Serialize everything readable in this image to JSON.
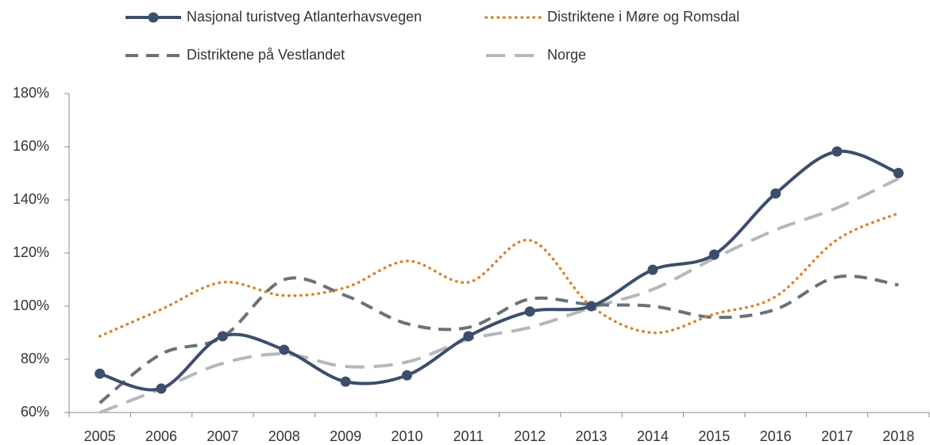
{
  "chart_data": {
    "type": "line",
    "smooth": true,
    "legend": "top",
    "categories": [
      "2005",
      "2006",
      "2007",
      "2008",
      "2009",
      "2010",
      "2011",
      "2012",
      "2013",
      "2014",
      "2015",
      "2016",
      "2017",
      "2018"
    ],
    "series": [
      {
        "name": "Nasjonal turistveg Atlanterhavsvegen",
        "color": "#3b4e6b",
        "dash": "solid",
        "markers": true,
        "values": [
          74.6,
          69,
          88.7,
          83.6,
          71.6,
          74,
          88.7,
          98,
          100,
          113.7,
          119.4,
          142.4,
          158.2,
          150.1
        ]
      },
      {
        "name": "Distriktene i Møre og Romsdal",
        "color": "#d9822b",
        "dash": "dotted",
        "markers": false,
        "values": [
          88.7,
          98.8,
          109,
          104,
          107,
          117,
          109,
          124.8,
          100,
          90,
          97,
          103.6,
          125,
          135
        ]
      },
      {
        "name": "Distriktene på Vestlandet",
        "color": "#6b7179",
        "dash": "dashed",
        "markers": false,
        "values": [
          63.6,
          82,
          88.4,
          110,
          104,
          93.4,
          92,
          102.7,
          100.6,
          100,
          95.8,
          98.8,
          111,
          108
        ]
      },
      {
        "name": "Norge",
        "color": "#b4b8bc",
        "dash": "longdash",
        "markers": false,
        "values": [
          60,
          69,
          78.5,
          82,
          77.3,
          79,
          87.5,
          92,
          99.4,
          106.3,
          118,
          128.7,
          137,
          148
        ]
      }
    ],
    "ylim": [
      60,
      180
    ],
    "yticks": [
      {
        "value": 60,
        "label": "60%"
      },
      {
        "value": 80,
        "label": "80%"
      },
      {
        "value": 100,
        "label": "100%"
      },
      {
        "value": 120,
        "label": "120%"
      },
      {
        "value": 140,
        "label": "140%"
      },
      {
        "value": 160,
        "label": "160%"
      },
      {
        "value": 180,
        "label": "180%"
      }
    ],
    "grid": false
  }
}
